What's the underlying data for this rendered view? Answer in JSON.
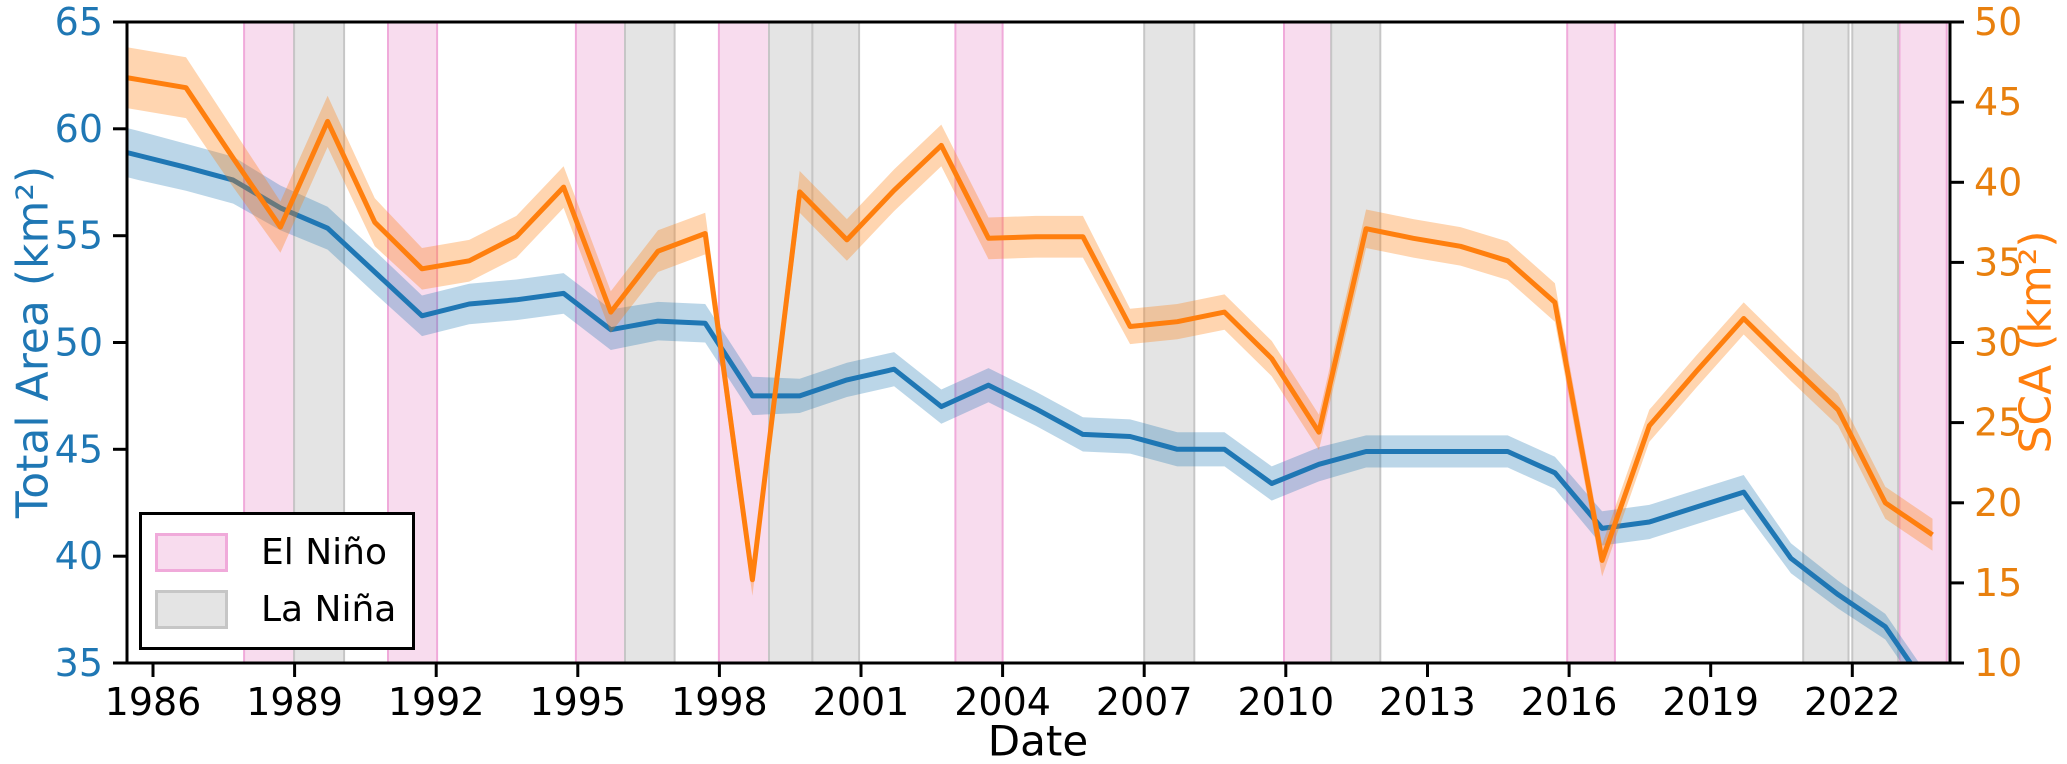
{
  "chart_data": {
    "type": "line",
    "title": "",
    "xlabel": "Date",
    "ylabel_left": "Total Area (km²)",
    "ylabel_right": "SCA (km²)",
    "xlim": [
      1985.45,
      2024.07
    ],
    "ylim_left": [
      35,
      65
    ],
    "ylim_right": [
      10,
      50
    ],
    "x_ticks": [
      1986,
      1989,
      1992,
      1995,
      1998,
      2001,
      2004,
      2007,
      2010,
      2013,
      2016,
      2019,
      2022
    ],
    "y_ticks_left": [
      65,
      60,
      55,
      50,
      45,
      40,
      35
    ],
    "y_ticks_right": [
      50,
      45,
      40,
      35,
      30,
      25,
      20,
      15,
      10
    ],
    "grid": false,
    "point_x_offset": 0.7,
    "years": [
      1984,
      1985,
      1986,
      1987,
      1988,
      1989,
      1990,
      1991,
      1992,
      1993,
      1994,
      1995,
      1996,
      1997,
      1998,
      1999,
      2000,
      2001,
      2002,
      2003,
      2004,
      2005,
      2006,
      2007,
      2008,
      2009,
      2010,
      2011,
      2012,
      2013,
      2014,
      2015,
      2016,
      2017,
      2018,
      2019,
      2020,
      2021,
      2022,
      2023
    ],
    "series": [
      {
        "name": "Total Area",
        "axis": "left",
        "color": "#1f77b4",
        "band_color": "rgba(31,119,180,0.30)",
        "values": [
          59.3,
          58.75,
          58.2,
          57.6,
          56.3,
          55.35,
          53.3,
          51.25,
          51.8,
          52.0,
          52.3,
          50.6,
          51.0,
          50.9,
          47.5,
          47.5,
          48.25,
          48.75,
          47.0,
          48.0,
          46.9,
          45.7,
          45.6,
          45.0,
          45.0,
          43.4,
          44.3,
          44.9,
          44.9,
          44.9,
          44.9,
          43.9,
          41.3,
          41.6,
          42.3,
          43.0,
          39.9,
          38.2,
          36.7,
          33.5
        ],
        "band_halfwidth": [
          1.15,
          1.15,
          1.1,
          1.1,
          1.05,
          1.0,
          1.0,
          0.95,
          0.95,
          0.95,
          0.95,
          0.95,
          0.9,
          0.9,
          0.9,
          0.8,
          0.8,
          0.8,
          0.8,
          0.8,
          0.8,
          0.8,
          0.8,
          0.8,
          0.8,
          0.8,
          0.8,
          0.75,
          0.75,
          0.75,
          0.75,
          0.75,
          0.8,
          0.8,
          0.8,
          0.8,
          0.7,
          0.65,
          0.6,
          0.6
        ]
      },
      {
        "name": "SCA",
        "axis": "right",
        "color": "#ff7f0e",
        "band_color": "rgba(255,127,14,0.33)",
        "values": [
          46.9,
          46.4,
          45.9,
          41.5,
          37.2,
          43.8,
          37.5,
          34.6,
          35.1,
          36.6,
          39.7,
          31.9,
          35.7,
          36.8,
          15.2,
          39.4,
          36.4,
          39.5,
          42.3,
          36.5,
          36.6,
          36.6,
          31.0,
          31.3,
          31.9,
          29.0,
          24.4,
          37.1,
          36.5,
          36.0,
          35.1,
          32.5,
          16.4,
          24.8,
          28.2,
          31.5,
          28.6,
          25.8,
          20.0,
          18.0
        ],
        "band_halfwidth": [
          1.9,
          1.9,
          1.9,
          1.8,
          1.6,
          1.6,
          1.5,
          1.3,
          1.3,
          1.3,
          1.3,
          1.3,
          1.3,
          1.3,
          1.0,
          1.3,
          1.3,
          1.3,
          1.3,
          1.3,
          1.3,
          1.3,
          1.1,
          1.1,
          1.1,
          1.1,
          1.1,
          1.2,
          1.2,
          1.2,
          1.2,
          1.2,
          1.0,
          1.0,
          1.0,
          1.0,
          1.0,
          1.0,
          1.0,
          1.0
        ]
      }
    ],
    "events": {
      "el_nino": {
        "label": "El Niño",
        "fill": "#f8dcee",
        "edge": "#f0aada",
        "spans": [
          [
            1987.93,
            1988.99
          ],
          [
            1990.98,
            1992.02
          ],
          [
            1994.96,
            1996.0
          ],
          [
            1997.99,
            1999.05
          ],
          [
            2003.0,
            2004.0
          ],
          [
            2009.96,
            2010.96
          ],
          [
            2015.96,
            2016.97
          ],
          [
            2023.0,
            2024.0
          ]
        ]
      },
      "la_nina": {
        "label": "La Niña",
        "fill": "#e4e4e4",
        "edge": "#c6c6c6",
        "spans": [
          [
            1988.99,
            1990.05
          ],
          [
            1996.0,
            1997.05
          ],
          [
            1999.05,
            1999.97
          ],
          [
            1999.97,
            2000.96
          ],
          [
            2007.0,
            2008.06
          ],
          [
            2010.96,
            2012.0
          ],
          [
            2020.96,
            2021.92
          ],
          [
            2022.0,
            2022.97
          ]
        ]
      }
    },
    "axis_colors": {
      "left_ticks": "#1f77b4",
      "right_ticks": "#e8800e",
      "bottom_ticks": "#000000",
      "spine": "#000000"
    }
  }
}
